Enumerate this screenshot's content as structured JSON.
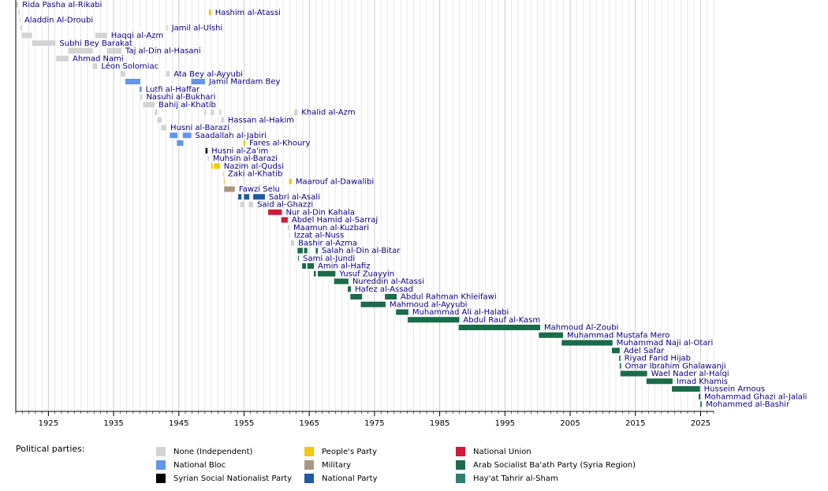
{
  "chart_data": {
    "type": "timeline",
    "xlim": [
      1920,
      2027
    ],
    "xticks": [
      1925,
      1935,
      1945,
      1955,
      1965,
      1975,
      1985,
      1995,
      2005,
      2015,
      2025
    ],
    "minor_grid_step": 1,
    "grid": true,
    "legend_title": "Political parties:",
    "parties": [
      {
        "name": "None (Independent)",
        "color": "#d3d3d3"
      },
      {
        "name": "National Bloc",
        "color": "#6495ed"
      },
      {
        "name": "Syrian Social Nationalist Party",
        "color": "#000000"
      },
      {
        "name": "People's Party",
        "color": "#f2c80f"
      },
      {
        "name": "Military",
        "color": "#a89880"
      },
      {
        "name": "National Party",
        "color": "#1f5aa6"
      },
      {
        "name": "National Union",
        "color": "#d11a3b"
      },
      {
        "name": "Arab Socialist Ba'ath Party (Syria Region)",
        "color": "#1a6b4a"
      },
      {
        "name": "Hay'at Tahrir al-Sham",
        "color": "#2f8070"
      }
    ],
    "rows": [
      {
        "name": "Rida Pasha al-Rikabi",
        "terms": [
          {
            "start": 1920.0,
            "end": 1920.4,
            "party": "None (Independent)"
          }
        ]
      },
      {
        "name": "Hashim al-Atassi",
        "terms": [
          {
            "start": 1920.4,
            "end": 1920.6,
            "party": "None (Independent)"
          },
          {
            "start": 1949.6,
            "end": 1949.95,
            "party": "People's Party"
          }
        ]
      },
      {
        "name": "Aladdin Al-Droubi",
        "terms": [
          {
            "start": 1920.6,
            "end": 1920.7,
            "party": "None (Independent)"
          }
        ]
      },
      {
        "name": "Jamil al-Ulshi",
        "terms": [
          {
            "start": 1920.7,
            "end": 1920.9,
            "party": "None (Independent)"
          },
          {
            "start": 1943.1,
            "end": 1943.3,
            "party": "None (Independent)"
          }
        ]
      },
      {
        "name": "Haqqi al-Azm",
        "terms": [
          {
            "start": 1920.9,
            "end": 1922.5,
            "party": "None (Independent)"
          },
          {
            "start": 1932.2,
            "end": 1934.0,
            "party": "None (Independent)"
          }
        ]
      },
      {
        "name": "Subhi Bey Barakat",
        "terms": [
          {
            "start": 1922.5,
            "end": 1926.1,
            "party": "None (Independent)"
          }
        ]
      },
      {
        "name": "Taj al-Din al-Hasani",
        "terms": [
          {
            "start": 1928.1,
            "end": 1931.8,
            "party": "None (Independent)"
          },
          {
            "start": 1934.0,
            "end": 1936.2,
            "party": "None (Independent)"
          }
        ]
      },
      {
        "name": "Ahmad Nami",
        "terms": [
          {
            "start": 1926.2,
            "end": 1928.1,
            "party": "None (Independent)"
          }
        ]
      },
      {
        "name": "Léon Solomiac",
        "terms": [
          {
            "start": 1931.8,
            "end": 1932.5,
            "party": "None (Independent)"
          }
        ]
      },
      {
        "name": "Ata Bey al-Ayyubi",
        "terms": [
          {
            "start": 1936.1,
            "end": 1936.8,
            "party": "None (Independent)"
          },
          {
            "start": 1943.1,
            "end": 1943.6,
            "party": "None (Independent)"
          }
        ]
      },
      {
        "name": "Jamil Mardam Bey",
        "terms": [
          {
            "start": 1936.8,
            "end": 1939.1,
            "party": "National Bloc"
          },
          {
            "start": 1946.9,
            "end": 1949.0,
            "party": "National Bloc"
          }
        ]
      },
      {
        "name": "Lutfi al-Haffar",
        "terms": [
          {
            "start": 1939.0,
            "end": 1939.3,
            "party": "National Bloc"
          }
        ]
      },
      {
        "name": "Nasuhi al-Bukhari",
        "terms": [
          {
            "start": 1939.1,
            "end": 1939.4,
            "party": "None (Independent)"
          }
        ]
      },
      {
        "name": "Bahij al-Khatib",
        "terms": [
          {
            "start": 1939.5,
            "end": 1941.3,
            "party": "None (Independent)"
          }
        ]
      },
      {
        "name": "Khalid al-Azm",
        "terms": [
          {
            "start": 1941.3,
            "end": 1941.7,
            "party": "None (Independent)"
          },
          {
            "start": 1948.9,
            "end": 1949.2,
            "party": "None (Independent)"
          },
          {
            "start": 1949.9,
            "end": 1950.4,
            "party": "None (Independent)"
          },
          {
            "start": 1951.2,
            "end": 1951.5,
            "party": "None (Independent)"
          },
          {
            "start": 1962.7,
            "end": 1963.2,
            "party": "None (Independent)"
          }
        ]
      },
      {
        "name": "Hassan al-Hakim",
        "terms": [
          {
            "start": 1941.7,
            "end": 1942.4,
            "party": "None (Independent)"
          },
          {
            "start": 1951.5,
            "end": 1951.9,
            "party": "None (Independent)"
          }
        ]
      },
      {
        "name": "Husni al-Barazi",
        "terms": [
          {
            "start": 1942.3,
            "end": 1943.1,
            "party": "None (Independent)"
          }
        ]
      },
      {
        "name": "Saadallah al-Jabiri",
        "terms": [
          {
            "start": 1943.6,
            "end": 1944.8,
            "party": "National Bloc"
          },
          {
            "start": 1945.6,
            "end": 1946.9,
            "party": "National Bloc"
          }
        ]
      },
      {
        "name": "Fares al-Khoury",
        "terms": [
          {
            "start": 1944.7,
            "end": 1945.7,
            "party": "National Bloc"
          },
          {
            "start": 1954.9,
            "end": 1955.2,
            "party": "People's Party"
          }
        ]
      },
      {
        "name": "Husni al-Za'im",
        "terms": [
          {
            "start": 1949.1,
            "end": 1949.4,
            "party": "Syrian Social Nationalist Party"
          }
        ]
      },
      {
        "name": "Muhsin al-Barazi",
        "terms": [
          {
            "start": 1949.4,
            "end": 1949.6,
            "party": "None (Independent)"
          }
        ]
      },
      {
        "name": "Nazim al-Qudsi",
        "terms": [
          {
            "start": 1949.95,
            "end": 1950.2,
            "party": "People's Party"
          },
          {
            "start": 1950.4,
            "end": 1951.3,
            "party": "People's Party"
          }
        ]
      },
      {
        "name": "Zaki al-Khatib",
        "terms": [
          {
            "start": 1951.8,
            "end": 1951.9,
            "party": "None (Independent)"
          }
        ]
      },
      {
        "name": "Maarouf al-Dawalibi",
        "terms": [
          {
            "start": 1951.9,
            "end": 1952.0,
            "party": "People's Party"
          },
          {
            "start": 1961.9,
            "end": 1962.3,
            "party": "People's Party"
          }
        ]
      },
      {
        "name": "Fawzi Selu",
        "terms": [
          {
            "start": 1951.95,
            "end": 1953.6,
            "party": "Military"
          }
        ]
      },
      {
        "name": "Sabri al-Asali",
        "terms": [
          {
            "start": 1954.1,
            "end": 1954.6,
            "party": "National Party"
          },
          {
            "start": 1955.0,
            "end": 1955.8,
            "party": "National Party"
          },
          {
            "start": 1956.4,
            "end": 1958.2,
            "party": "National Party"
          }
        ]
      },
      {
        "name": "Said al-Ghazzi",
        "terms": [
          {
            "start": 1954.4,
            "end": 1955.0,
            "party": "None (Independent)"
          },
          {
            "start": 1955.7,
            "end": 1956.4,
            "party": "None (Independent)"
          }
        ]
      },
      {
        "name": "Nur al-Din Kahala",
        "terms": [
          {
            "start": 1958.7,
            "end": 1960.8,
            "party": "National Union"
          }
        ]
      },
      {
        "name": "Abdel Hamid al-Sarraj",
        "terms": [
          {
            "start": 1960.7,
            "end": 1961.7,
            "party": "National Union"
          }
        ]
      },
      {
        "name": "Maamun al-Kuzbari",
        "terms": [
          {
            "start": 1961.7,
            "end": 1961.95,
            "party": "None (Independent)"
          }
        ]
      },
      {
        "name": "Izzat al-Nuss",
        "terms": [
          {
            "start": 1961.9,
            "end": 1962.05,
            "party": "None (Independent)"
          }
        ]
      },
      {
        "name": "Bashir al-Azma",
        "terms": [
          {
            "start": 1962.2,
            "end": 1962.7,
            "party": "None (Independent)"
          }
        ]
      },
      {
        "name": "Salah al-Din al-Bitar",
        "terms": [
          {
            "start": 1963.2,
            "end": 1964.0,
            "party": "Arab Socialist Ba'ath Party (Syria Region)"
          },
          {
            "start": 1964.2,
            "end": 1964.7,
            "party": "Arab Socialist Ba'ath Party (Syria Region)"
          },
          {
            "start": 1966.0,
            "end": 1966.3,
            "party": "Arab Socialist Ba'ath Party (Syria Region)"
          }
        ]
      },
      {
        "name": "Sami al-Jundi",
        "terms": [
          {
            "start": 1963.3,
            "end": 1963.4,
            "party": "Arab Socialist Ba'ath Party (Syria Region)"
          }
        ]
      },
      {
        "name": "Amin al-Hafiz",
        "terms": [
          {
            "start": 1963.9,
            "end": 1964.5,
            "party": "Arab Socialist Ba'ath Party (Syria Region)"
          },
          {
            "start": 1964.7,
            "end": 1965.7,
            "party": "Arab Socialist Ba'ath Party (Syria Region)"
          }
        ]
      },
      {
        "name": "Yusuf Zuayyin",
        "terms": [
          {
            "start": 1965.7,
            "end": 1966.0,
            "party": "Arab Socialist Ba'ath Party (Syria Region)"
          },
          {
            "start": 1966.3,
            "end": 1969.0,
            "party": "Arab Socialist Ba'ath Party (Syria Region)"
          }
        ]
      },
      {
        "name": "Nureddin al-Atassi",
        "terms": [
          {
            "start": 1968.8,
            "end": 1971.0,
            "party": "Arab Socialist Ba'ath Party (Syria Region)"
          }
        ]
      },
      {
        "name": "Hafez al-Assad",
        "terms": [
          {
            "start": 1970.9,
            "end": 1971.4,
            "party": "Arab Socialist Ba'ath Party (Syria Region)"
          }
        ]
      },
      {
        "name": "Abdul Rahman Khleifawi",
        "terms": [
          {
            "start": 1971.3,
            "end": 1973.1,
            "party": "Arab Socialist Ba'ath Party (Syria Region)"
          },
          {
            "start": 1976.6,
            "end": 1978.4,
            "party": "Arab Socialist Ba'ath Party (Syria Region)"
          }
        ]
      },
      {
        "name": "Mahmoud al-Ayyubi",
        "terms": [
          {
            "start": 1972.9,
            "end": 1976.7,
            "party": "Arab Socialist Ba'ath Party (Syria Region)"
          }
        ]
      },
      {
        "name": "Muhammad Ali al-Halabi",
        "terms": [
          {
            "start": 1978.3,
            "end": 1980.2,
            "party": "Arab Socialist Ba'ath Party (Syria Region)"
          }
        ]
      },
      {
        "name": "Abdul Rauf al-Kasm",
        "terms": [
          {
            "start": 1980.1,
            "end": 1988.0,
            "party": "Arab Socialist Ba'ath Party (Syria Region)"
          }
        ]
      },
      {
        "name": "Mahmoud Al-Zoubi",
        "terms": [
          {
            "start": 1987.9,
            "end": 2000.4,
            "party": "Arab Socialist Ba'ath Party (Syria Region)"
          }
        ]
      },
      {
        "name": "Muhammad Mustafa Mero",
        "terms": [
          {
            "start": 2000.2,
            "end": 2003.9,
            "party": "Arab Socialist Ba'ath Party (Syria Region)"
          }
        ]
      },
      {
        "name": "Muhammad Naji al-Otari",
        "terms": [
          {
            "start": 2003.7,
            "end": 2011.5,
            "party": "Arab Socialist Ba'ath Party (Syria Region)"
          }
        ]
      },
      {
        "name": "Adel Safar",
        "terms": [
          {
            "start": 2011.4,
            "end": 2012.6,
            "party": "Arab Socialist Ba'ath Party (Syria Region)"
          }
        ]
      },
      {
        "name": "Riyad Farid Hijab",
        "terms": [
          {
            "start": 2012.5,
            "end": 2012.7,
            "party": "Arab Socialist Ba'ath Party (Syria Region)"
          }
        ]
      },
      {
        "name": "Omar Ibrahim Ghalawanji",
        "terms": [
          {
            "start": 2012.6,
            "end": 2012.8,
            "party": "Arab Socialist Ba'ath Party (Syria Region)"
          }
        ]
      },
      {
        "name": "Wael Nader al-Halqi",
        "terms": [
          {
            "start": 2012.7,
            "end": 2016.8,
            "party": "Arab Socialist Ba'ath Party (Syria Region)"
          }
        ]
      },
      {
        "name": "Imad Khamis",
        "terms": [
          {
            "start": 2016.7,
            "end": 2020.7,
            "party": "Arab Socialist Ba'ath Party (Syria Region)"
          }
        ]
      },
      {
        "name": "Hussein Arnous",
        "terms": [
          {
            "start": 2020.6,
            "end": 2024.9,
            "party": "Arab Socialist Ba'ath Party (Syria Region)"
          }
        ]
      },
      {
        "name": "Mohammad Ghazi al-Jalali",
        "terms": [
          {
            "start": 2024.7,
            "end": 2024.95,
            "party": "Arab Socialist Ba'ath Party (Syria Region)"
          }
        ]
      },
      {
        "name": "Mohammed al-Bashir",
        "terms": [
          {
            "start": 2024.95,
            "end": 2025.2,
            "party": "Hay'at Tahrir al-Sham"
          }
        ]
      }
    ]
  }
}
